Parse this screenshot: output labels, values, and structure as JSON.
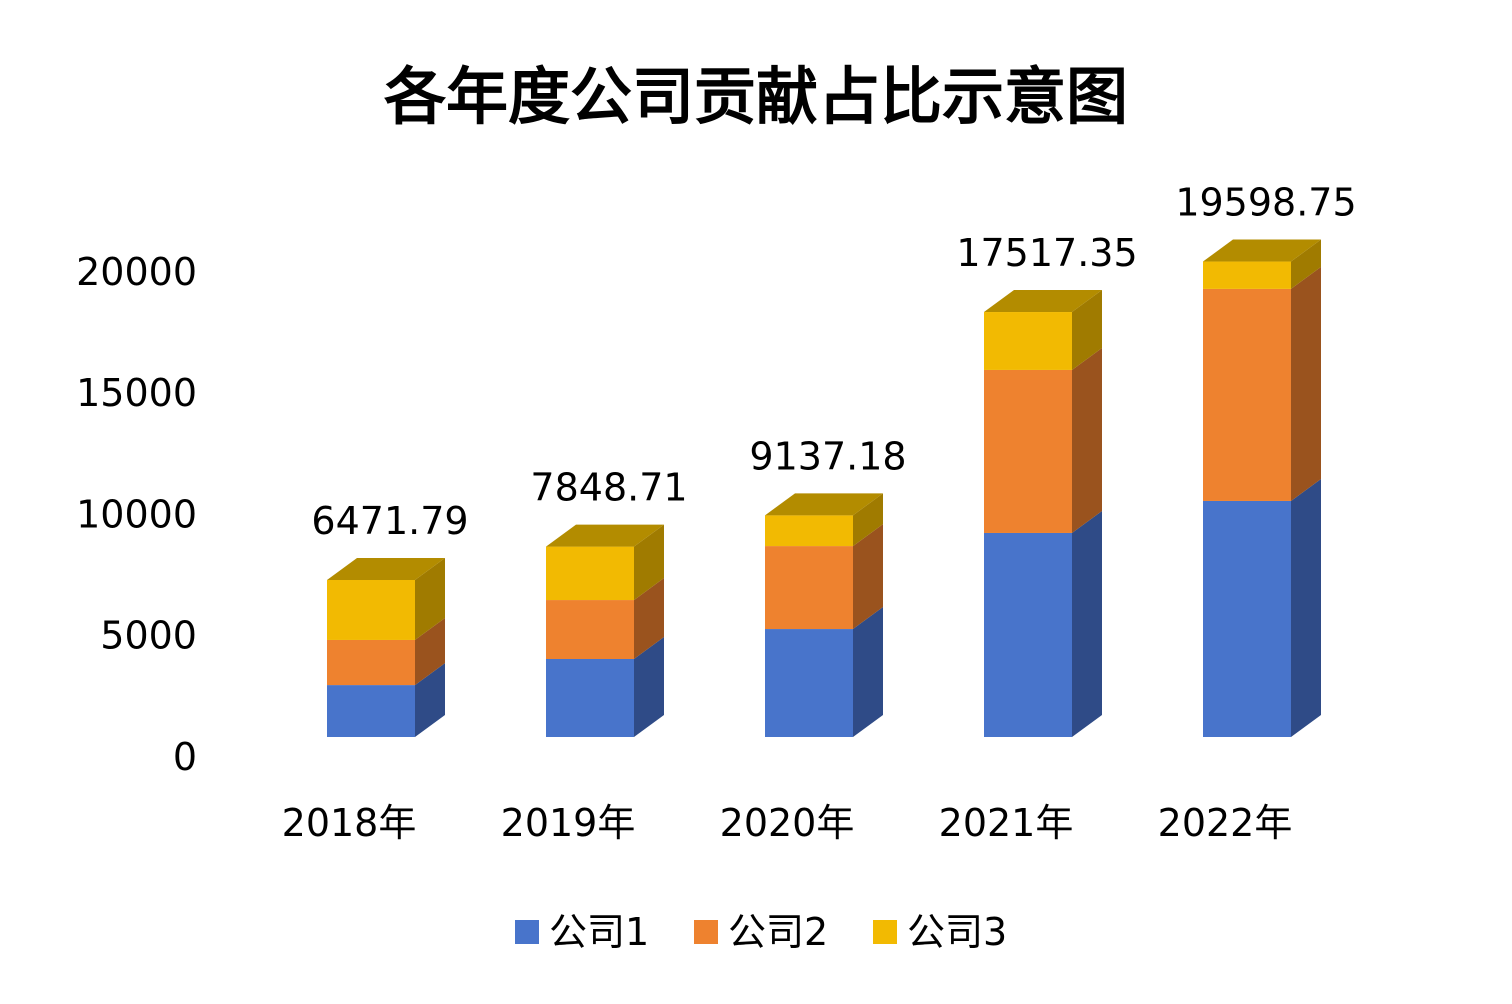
{
  "chart_data": {
    "type": "bar",
    "stacked": true,
    "style": "3d",
    "title": "各年度公司贡献占比示意图",
    "categories": [
      "2018年",
      "2019年",
      "2020年",
      "2021年",
      "2022年"
    ],
    "series": [
      {
        "name": "公司1",
        "color": "#4874CB",
        "side_color": "#2F4B87",
        "values": [
          2140,
          3215,
          4450,
          8410,
          9730
        ]
      },
      {
        "name": "公司2",
        "color": "#EE822F",
        "side_color": "#9A531E",
        "values": [
          1860,
          2430,
          3420,
          6720,
          8740
        ]
      },
      {
        "name": "公司3",
        "color": "#F2BA02",
        "side_color": "#A07B00",
        "values": [
          2471.79,
          2203.71,
          1267.18,
          2387.35,
          1128.75
        ]
      }
    ],
    "data_labels": [
      "6471.79",
      "7848.71",
      "9137.18",
      "17517.35",
      "19598.75"
    ],
    "y_ticks": [
      "0",
      "5000",
      "10000",
      "15000",
      "20000"
    ],
    "ylim": [
      0,
      20000
    ],
    "grid": false,
    "legend_position": "bottom",
    "xlabel": "",
    "ylabel": ""
  }
}
